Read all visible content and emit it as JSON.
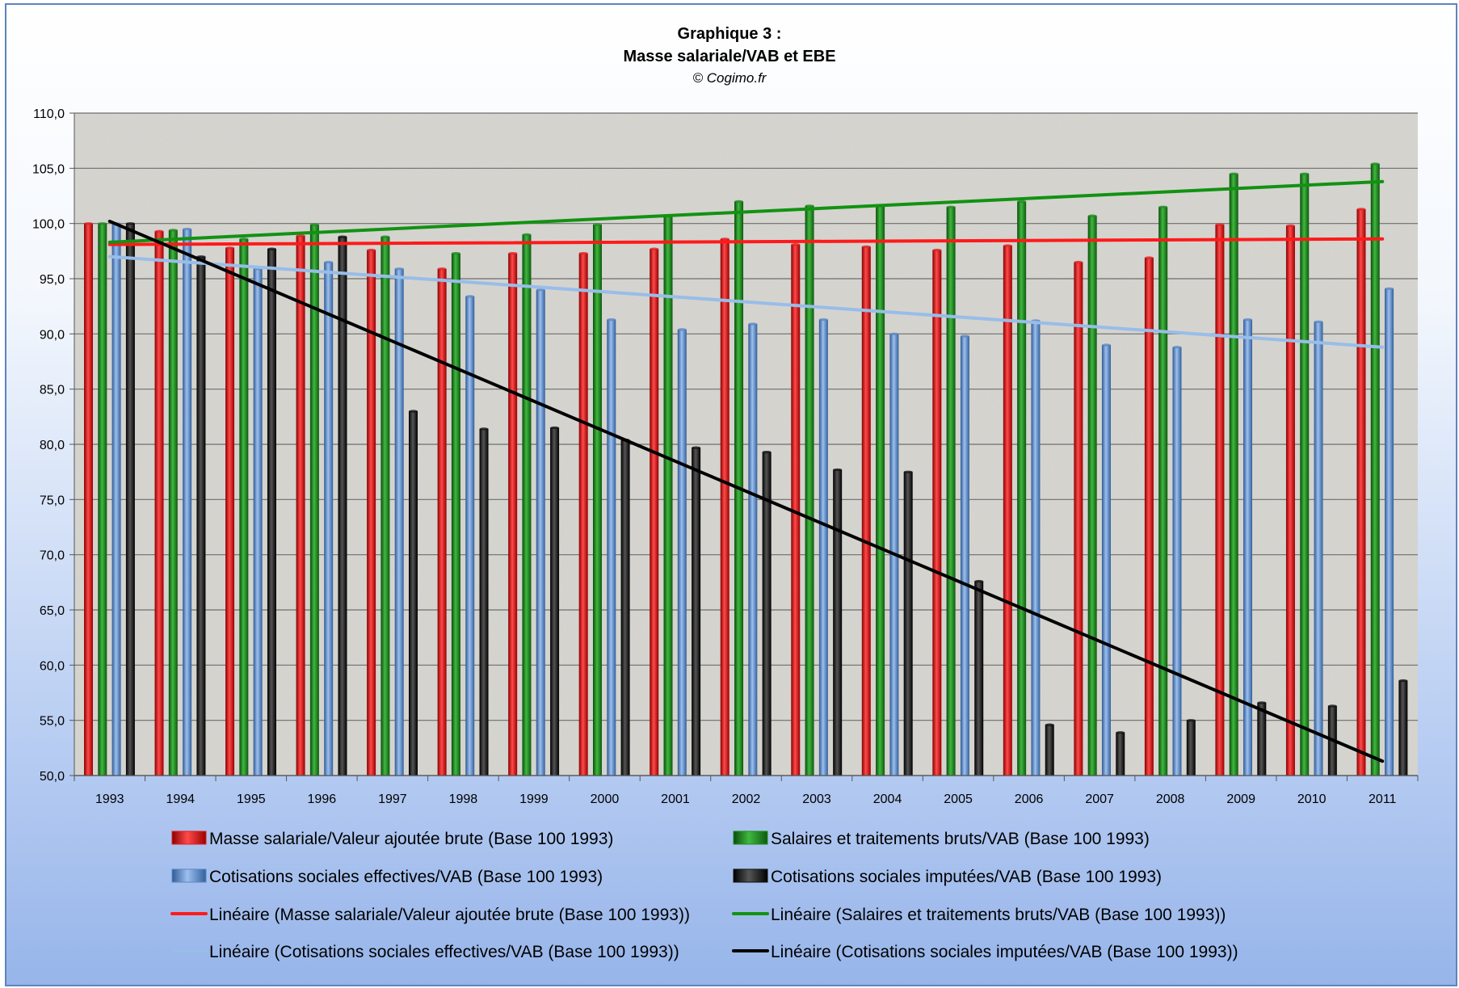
{
  "chart_data": {
    "type": "bar",
    "title": "Graphique 3 :",
    "subtitle": "Masse salariale/VAB et EBE",
    "credit": "© Cogimo.fr",
    "ylim": [
      50,
      110
    ],
    "yticks": [
      "50,0",
      "55,0",
      "60,0",
      "65,0",
      "70,0",
      "75,0",
      "80,0",
      "85,0",
      "90,0",
      "95,0",
      "100,0",
      "105,0",
      "110,0"
    ],
    "grid": true,
    "legend_position": "bottom",
    "categories": [
      "1993",
      "1994",
      "1995",
      "1996",
      "1997",
      "1998",
      "1999",
      "2000",
      "2001",
      "2002",
      "2003",
      "2004",
      "2005",
      "2006",
      "2007",
      "2008",
      "2009",
      "2010",
      "2011"
    ],
    "series": [
      {
        "name": "Masse salariale/Valeur ajoutée brute (Base 100 1993)",
        "color": "#e02020",
        "values": [
          100.0,
          99.3,
          97.8,
          98.9,
          97.6,
          95.9,
          97.3,
          97.3,
          97.7,
          98.6,
          98.1,
          97.9,
          97.6,
          98.0,
          96.5,
          96.9,
          99.9,
          99.8,
          101.3
        ]
      },
      {
        "name": "Salaires et traitements bruts/VAB (Base 100 1993)",
        "color": "#1f8a1f",
        "values": [
          100.0,
          99.4,
          98.6,
          99.9,
          98.8,
          97.3,
          99.0,
          99.9,
          100.7,
          102.0,
          101.6,
          101.6,
          101.5,
          102.0,
          100.7,
          101.5,
          104.5,
          104.5,
          105.4
        ]
      },
      {
        "name": "Cotisations sociales effectives/VAB (Base 100 1993)",
        "color": "#5b87c5",
        "values": [
          100.0,
          99.5,
          95.9,
          96.5,
          95.9,
          93.4,
          94.0,
          91.3,
          90.4,
          90.9,
          91.3,
          90.0,
          89.8,
          91.2,
          89.0,
          88.8,
          91.3,
          91.1,
          94.1
        ]
      },
      {
        "name": "Cotisations sociales imputées/VAB (Base 100 1993)",
        "color": "#111111",
        "values": [
          100.0,
          97.0,
          97.7,
          98.8,
          83.0,
          81.4,
          81.5,
          80.4,
          79.7,
          79.3,
          77.7,
          77.5,
          67.6,
          54.6,
          53.9,
          55.0,
          56.6,
          56.3,
          58.6
        ]
      }
    ],
    "trendlines": [
      {
        "name": "Linéaire (Masse salariale/Valeur ajoutée brute (Base 100 1993))",
        "color": "#ff1a1a",
        "start": 98.1,
        "end": 98.6
      },
      {
        "name": "Linéaire (Salaires et traitements bruts/VAB (Base 100 1993))",
        "color": "#129212",
        "start": 98.3,
        "end": 103.8
      },
      {
        "name": "Linéaire (Cotisations sociales effectives/VAB (Base 100 1993))",
        "color": "#98bde8",
        "start": 97.0,
        "end": 88.8
      },
      {
        "name": "Linéaire (Cotisations sociales imputées/VAB (Base 100 1993))",
        "color": "#000000",
        "start": 100.2,
        "end": 51.3
      }
    ]
  }
}
